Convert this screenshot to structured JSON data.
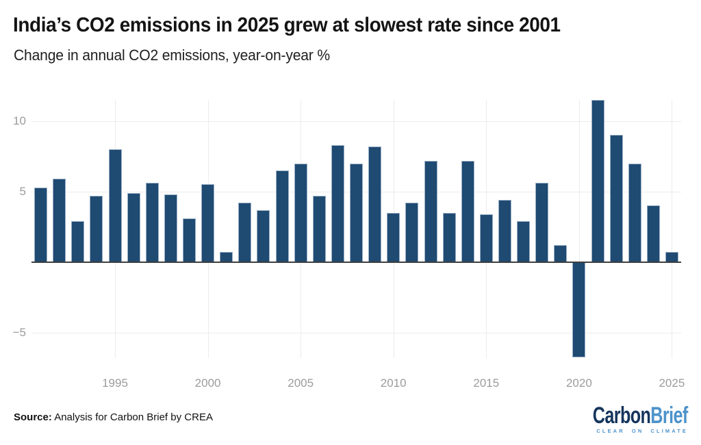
{
  "chart_data": {
    "type": "bar",
    "title": "India’s CO2 emissions in 2025 grew at slowest rate since 2001",
    "subtitle": "Change in annual CO2 emissions, year-on-year %",
    "x": [
      1991,
      1992,
      1993,
      1994,
      1995,
      1996,
      1997,
      1998,
      1999,
      2000,
      2001,
      2002,
      2003,
      2004,
      2005,
      2006,
      2007,
      2008,
      2009,
      2010,
      2011,
      2012,
      2013,
      2014,
      2015,
      2016,
      2017,
      2018,
      2019,
      2020,
      2021,
      2022,
      2023,
      2024,
      2025
    ],
    "values": [
      5.3,
      5.9,
      2.9,
      4.7,
      8.0,
      4.9,
      5.6,
      4.8,
      3.1,
      5.5,
      0.7,
      4.2,
      3.7,
      6.5,
      7.0,
      4.7,
      8.3,
      7.0,
      8.2,
      3.5,
      4.2,
      7.2,
      3.5,
      7.2,
      3.4,
      4.4,
      2.9,
      5.6,
      1.2,
      -6.8,
      11.5,
      9.0,
      7.0,
      4.0,
      0.7
    ],
    "xlabel": "",
    "ylabel": "",
    "ylim": [
      -6.8,
      11.5
    ],
    "yticks": [
      10,
      5,
      -5
    ],
    "ytick_labels": [
      "10",
      "5",
      "−5"
    ],
    "xticks": [
      1995,
      2000,
      2005,
      2010,
      2015,
      2020,
      2025
    ],
    "grid": "on",
    "legend": "none",
    "bar_color": "#1f4a72",
    "axis_line_color": "#3e3e3e",
    "gridline_color": "#ececec",
    "tick_label_color": "#9b9b9b"
  },
  "footer": {
    "source_label": "Source:",
    "source_text": " Analysis for Carbon Brief by CREA"
  },
  "logo": {
    "part1": "Carbon",
    "part2": "Brief",
    "tagline": "CLEAR ON CLIMATE",
    "color_dark": "#16355d",
    "color_light": "#4d93cb"
  }
}
